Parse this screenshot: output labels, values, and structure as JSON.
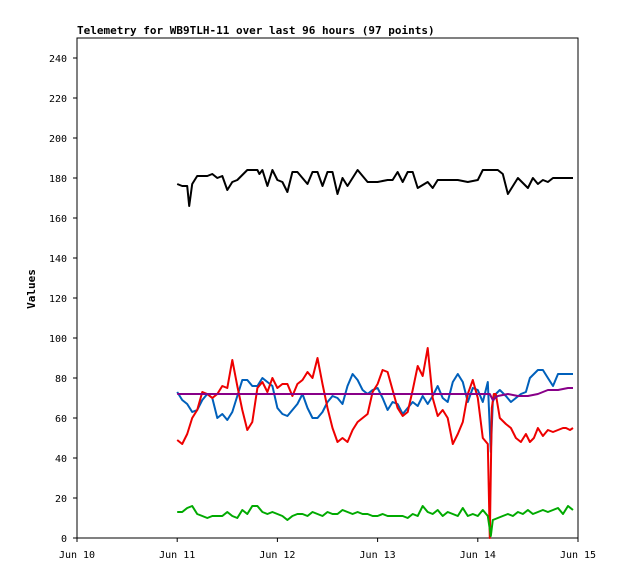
{
  "chart_data": {
    "type": "line",
    "title": "Telemetry for WB9TLH-11 over last 96 hours (97 points)",
    "xlabel": "",
    "ylabel": "Values",
    "xlim": [
      "Jun 10",
      "Jun 15"
    ],
    "ylim": [
      0,
      250
    ],
    "x_tick_labels": [
      "Jun 10",
      "Jun 11",
      "Jun 12",
      "Jun 13",
      "Jun 14",
      "Jun 15"
    ],
    "y_ticks": [
      0,
      20,
      40,
      60,
      80,
      100,
      120,
      140,
      160,
      180,
      200,
      220,
      240
    ],
    "grid": false,
    "legend": "none",
    "series": [
      {
        "color": "#000000",
        "x": [
          11.0,
          11.05,
          11.1,
          11.12,
          11.15,
          11.2,
          11.3,
          11.35,
          11.4,
          11.45,
          11.5,
          11.55,
          11.6,
          11.7,
          11.8,
          11.82,
          11.85,
          11.9,
          11.95,
          12.0,
          12.05,
          12.1,
          12.15,
          12.2,
          12.3,
          12.35,
          12.4,
          12.45,
          12.5,
          12.55,
          12.6,
          12.65,
          12.7,
          12.8,
          12.9,
          13.0,
          13.1,
          13.15,
          13.2,
          13.25,
          13.3,
          13.35,
          13.4,
          13.5,
          13.55,
          13.6,
          13.65,
          13.7,
          13.75,
          13.8,
          13.9,
          14.0,
          14.05,
          14.1,
          14.15,
          14.2,
          14.25,
          14.3,
          14.4,
          14.5,
          14.55,
          14.6,
          14.65,
          14.7,
          14.75,
          14.8,
          14.85,
          14.9,
          14.95
        ],
        "y": [
          177,
          176,
          176,
          166,
          177,
          181,
          181,
          182,
          180,
          181,
          174,
          178,
          179,
          184,
          184,
          182,
          184,
          176,
          184,
          179,
          178,
          173,
          183,
          183,
          177,
          183,
          183,
          176,
          183,
          183,
          172,
          180,
          176,
          184,
          178,
          178,
          179,
          179,
          183,
          178,
          183,
          183,
          175,
          178,
          175,
          179,
          179,
          179,
          179,
          179,
          178,
          179,
          184,
          184,
          184,
          184,
          182,
          172,
          180,
          175,
          180,
          177,
          179,
          178,
          180,
          180,
          180,
          180,
          180
        ]
      },
      {
        "color": "#0060bb",
        "x": [
          11.0,
          11.05,
          11.1,
          11.15,
          11.2,
          11.25,
          11.3,
          11.35,
          11.4,
          11.45,
          11.5,
          11.55,
          11.6,
          11.65,
          11.7,
          11.75,
          11.8,
          11.85,
          11.9,
          11.95,
          12.0,
          12.05,
          12.1,
          12.15,
          12.2,
          12.25,
          12.3,
          12.35,
          12.4,
          12.45,
          12.5,
          12.55,
          12.6,
          12.65,
          12.7,
          12.75,
          12.8,
          12.85,
          12.9,
          12.95,
          13.0,
          13.05,
          13.1,
          13.15,
          13.2,
          13.25,
          13.3,
          13.35,
          13.4,
          13.45,
          13.5,
          13.55,
          13.6,
          13.65,
          13.7,
          13.75,
          13.8,
          13.85,
          13.9,
          13.95,
          14.0,
          14.05,
          14.1,
          14.13,
          14.15,
          14.18,
          14.22,
          14.28,
          14.33,
          14.38,
          14.43,
          14.48,
          14.52,
          14.56,
          14.6,
          14.65,
          14.7,
          14.75,
          14.8,
          14.85,
          14.88,
          14.92,
          14.95
        ],
        "y": [
          73,
          69,
          67,
          63,
          64,
          69,
          72,
          70,
          60,
          62,
          59,
          63,
          71,
          79,
          79,
          76,
          76,
          80,
          78,
          76,
          65,
          62,
          61,
          64,
          67,
          72,
          65,
          60,
          60,
          63,
          68,
          71,
          70,
          67,
          76,
          82,
          79,
          74,
          72,
          74,
          75,
          70,
          64,
          68,
          67,
          62,
          65,
          68,
          66,
          71,
          67,
          71,
          76,
          70,
          68,
          78,
          82,
          78,
          68,
          75,
          74,
          68,
          78,
          43,
          68,
          72,
          74,
          71,
          68,
          70,
          72,
          73,
          80,
          82,
          84,
          84,
          80,
          76,
          82,
          82,
          82,
          82,
          82
        ]
      },
      {
        "color": "#ee0000",
        "x": [
          11.0,
          11.05,
          11.1,
          11.15,
          11.2,
          11.25,
          11.3,
          11.35,
          11.4,
          11.45,
          11.5,
          11.55,
          11.6,
          11.65,
          11.7,
          11.75,
          11.8,
          11.85,
          11.9,
          11.95,
          12.0,
          12.05,
          12.1,
          12.15,
          12.2,
          12.25,
          12.3,
          12.35,
          12.4,
          12.45,
          12.5,
          12.55,
          12.6,
          12.65,
          12.7,
          12.75,
          12.8,
          12.85,
          12.9,
          12.95,
          13.0,
          13.05,
          13.1,
          13.15,
          13.2,
          13.25,
          13.3,
          13.35,
          13.4,
          13.45,
          13.5,
          13.55,
          13.6,
          13.65,
          13.7,
          13.75,
          13.8,
          13.85,
          13.9,
          13.95,
          14.0,
          14.05,
          14.1,
          14.12,
          14.14,
          14.16,
          14.18,
          14.22,
          14.28,
          14.33,
          14.38,
          14.43,
          14.48,
          14.52,
          14.56,
          14.6,
          14.65,
          14.7,
          14.75,
          14.8,
          14.85,
          14.88,
          14.92,
          14.95
        ],
        "y": [
          49,
          47,
          52,
          60,
          64,
          73,
          72,
          70,
          72,
          76,
          75,
          89,
          76,
          64,
          54,
          58,
          75,
          78,
          73,
          80,
          75,
          77,
          77,
          71,
          77,
          79,
          83,
          80,
          90,
          77,
          65,
          55,
          48,
          50,
          48,
          54,
          58,
          60,
          62,
          73,
          77,
          84,
          83,
          74,
          65,
          61,
          63,
          74,
          86,
          81,
          95,
          70,
          61,
          64,
          60,
          47,
          52,
          58,
          72,
          79,
          70,
          50,
          47,
          0,
          65,
          72,
          72,
          60,
          57,
          55,
          50,
          48,
          52,
          48,
          50,
          55,
          51,
          54,
          53,
          54,
          55,
          55,
          54,
          55
        ]
      },
      {
        "color": "#00aa00",
        "x": [
          11.0,
          11.05,
          11.1,
          11.15,
          11.2,
          11.25,
          11.3,
          11.35,
          11.4,
          11.45,
          11.5,
          11.55,
          11.6,
          11.65,
          11.7,
          11.75,
          11.8,
          11.85,
          11.9,
          11.95,
          12.0,
          12.05,
          12.1,
          12.15,
          12.2,
          12.25,
          12.3,
          12.35,
          12.4,
          12.45,
          12.5,
          12.55,
          12.6,
          12.65,
          12.7,
          12.75,
          12.8,
          12.85,
          12.9,
          12.95,
          13.0,
          13.05,
          13.1,
          13.15,
          13.2,
          13.25,
          13.3,
          13.35,
          13.4,
          13.45,
          13.5,
          13.55,
          13.6,
          13.65,
          13.7,
          13.75,
          13.8,
          13.85,
          13.9,
          13.95,
          14.0,
          14.05,
          14.1,
          14.13,
          14.15,
          14.2,
          14.25,
          14.3,
          14.35,
          14.4,
          14.45,
          14.5,
          14.55,
          14.6,
          14.65,
          14.7,
          14.75,
          14.8,
          14.85,
          14.9,
          14.95
        ],
        "y": [
          13,
          13,
          15,
          16,
          12,
          11,
          10,
          11,
          11,
          11,
          13,
          11,
          10,
          14,
          12,
          16,
          16,
          13,
          12,
          13,
          12,
          11,
          9,
          11,
          12,
          12,
          11,
          13,
          12,
          11,
          13,
          12,
          12,
          14,
          13,
          12,
          13,
          12,
          12,
          11,
          11,
          12,
          11,
          11,
          11,
          11,
          10,
          12,
          11,
          16,
          13,
          12,
          14,
          11,
          13,
          12,
          11,
          15,
          11,
          12,
          11,
          14,
          11,
          1,
          9,
          10,
          11,
          12,
          11,
          13,
          12,
          14,
          12,
          13,
          14,
          13,
          14,
          15,
          12,
          16,
          14
        ]
      },
      {
        "color": "#880088",
        "x": [
          11.0,
          11.5,
          12.0,
          12.5,
          13.0,
          13.5,
          14.0,
          14.12,
          14.15,
          14.2,
          14.3,
          14.4,
          14.5,
          14.6,
          14.7,
          14.8,
          14.9,
          14.95
        ],
        "y": [
          72,
          72,
          72,
          72,
          72,
          72,
          72,
          72,
          69,
          71,
          72,
          71,
          71,
          72,
          74,
          74,
          75,
          75
        ]
      }
    ]
  }
}
